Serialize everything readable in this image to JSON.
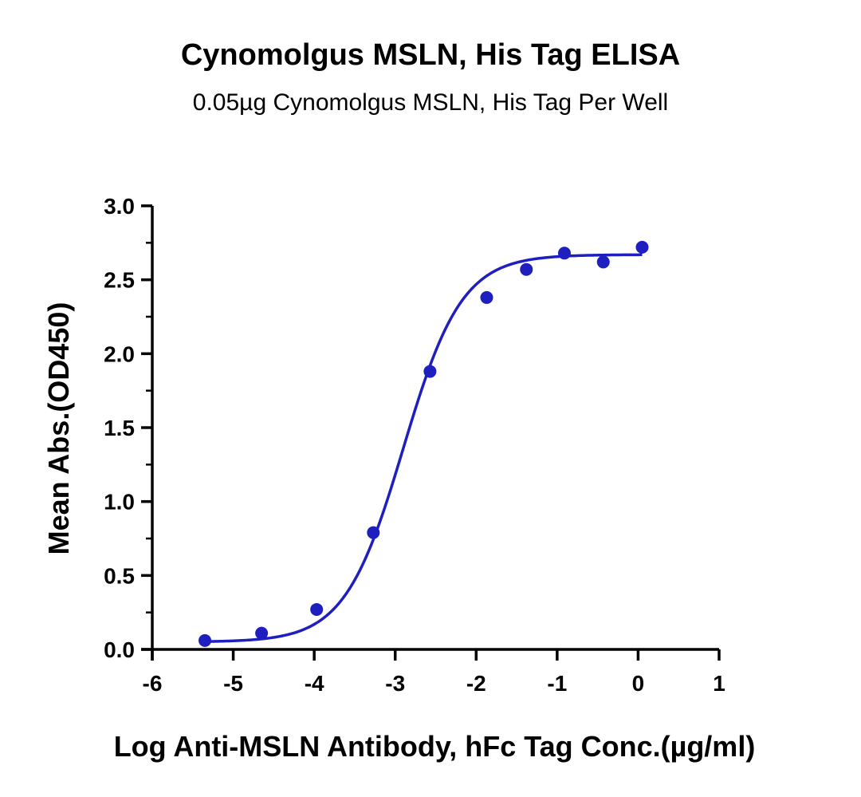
{
  "chart_data": {
    "type": "scatter",
    "title": "Cynomolgus MSLN, His Tag ELISA",
    "subtitle": "0.05µg Cynomolgus MSLN, His Tag Per Well",
    "xlabel": "Log Anti-MSLN Antibody, hFc Tag Conc.(µg/ml)",
    "ylabel": "Mean Abs.(OD450)",
    "xlim": [
      -6,
      1
    ],
    "ylim": [
      0,
      3.0
    ],
    "xticks": [
      "-6",
      "-5",
      "-4",
      "-3",
      "-2",
      "-1",
      "0",
      "1"
    ],
    "yticks": [
      "0.0",
      "0.5",
      "1.0",
      "1.5",
      "2.0",
      "2.5",
      "3.0"
    ],
    "grid": false,
    "color": "#1f1fbf",
    "series": [
      {
        "x": [
          -5.35,
          -4.65,
          -3.97,
          -3.27,
          -2.57,
          -1.87,
          -1.38,
          -0.91,
          -0.43,
          0.05
        ],
        "y": [
          0.06,
          0.11,
          0.27,
          0.79,
          1.88,
          2.38,
          2.57,
          2.68,
          2.62,
          2.72
        ]
      }
    ],
    "fit": {
      "bottom": 0.05,
      "top": 2.67,
      "logEC50": -2.9,
      "hill": 1.2
    }
  }
}
